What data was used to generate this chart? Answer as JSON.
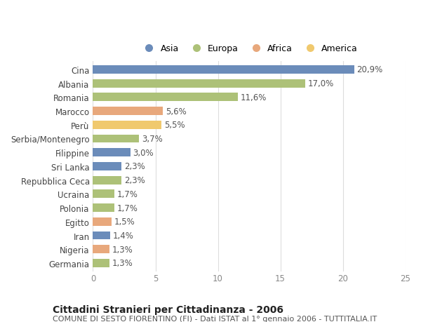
{
  "categories": [
    "Cina",
    "Albania",
    "Romania",
    "Marocco",
    "Perù",
    "Serbia/Montenegro",
    "Filippine",
    "Sri Lanka",
    "Repubblica Ceca",
    "Ucraina",
    "Polonia",
    "Egitto",
    "Iran",
    "Nigeria",
    "Germania"
  ],
  "values": [
    20.9,
    17.0,
    11.6,
    5.6,
    5.5,
    3.7,
    3.0,
    2.3,
    2.3,
    1.7,
    1.7,
    1.5,
    1.4,
    1.3,
    1.3
  ],
  "labels": [
    "20,9%",
    "17,0%",
    "11,6%",
    "5,6%",
    "5,5%",
    "3,7%",
    "3,0%",
    "2,3%",
    "2,3%",
    "1,7%",
    "1,7%",
    "1,5%",
    "1,4%",
    "1,3%",
    "1,3%"
  ],
  "colors": [
    "#6b8cba",
    "#adc178",
    "#adc178",
    "#e8a87c",
    "#f0c96e",
    "#adc178",
    "#6b8cba",
    "#6b8cba",
    "#adc178",
    "#adc178",
    "#adc178",
    "#e8a87c",
    "#6b8cba",
    "#e8a87c",
    "#adc178"
  ],
  "legend_labels": [
    "Asia",
    "Europa",
    "Africa",
    "America"
  ],
  "legend_colors": [
    "#6b8cba",
    "#adc178",
    "#e8a87c",
    "#f0c96e"
  ],
  "title": "Cittadini Stranieri per Cittadinanza - 2006",
  "subtitle": "COMUNE DI SESTO FIORENTINO (FI) - Dati ISTAT al 1° gennaio 2006 - TUTTITALIA.IT",
  "xlim": [
    0,
    25
  ],
  "xticks": [
    0,
    5,
    10,
    15,
    20,
    25
  ],
  "background_color": "#ffffff",
  "grid_color": "#dddddd",
  "bar_height": 0.6,
  "label_fontsize": 8.5,
  "tick_fontsize": 8.5,
  "title_fontsize": 10,
  "subtitle_fontsize": 8
}
